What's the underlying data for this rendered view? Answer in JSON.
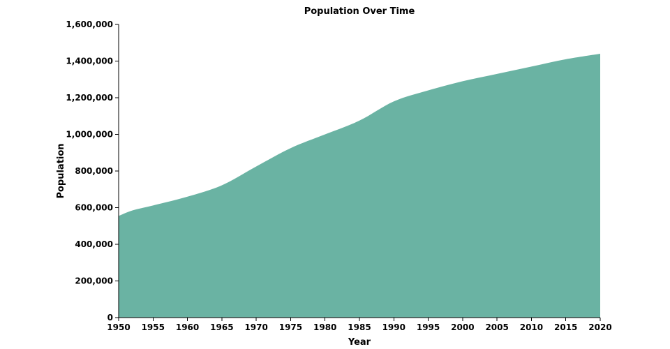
{
  "chart_data": {
    "type": "area",
    "title": "Population Over Time",
    "xlabel": "Year",
    "ylabel": "Population",
    "xlim": [
      1950,
      2020
    ],
    "ylim": [
      0,
      1600000
    ],
    "x_ticks": [
      1950,
      1955,
      1960,
      1965,
      1970,
      1975,
      1980,
      1985,
      1990,
      1995,
      2000,
      2005,
      2010,
      2015,
      2020
    ],
    "x_tick_labels": [
      "1950",
      "1955",
      "1960",
      "1965",
      "1970",
      "1975",
      "1980",
      "1985",
      "1990",
      "1995",
      "2000",
      "2005",
      "2010",
      "2015",
      "2020"
    ],
    "y_ticks": [
      0,
      200000,
      400000,
      600000,
      800000,
      1000000,
      1200000,
      1400000,
      1600000
    ],
    "y_tick_labels": [
      "0",
      "200,000",
      "400,000",
      "600,000",
      "800,000",
      "1,000,000",
      "1,200,000",
      "1,400,000",
      "1,600,000"
    ],
    "grid": false,
    "legend": "none",
    "fill_color": "#6ab3a3",
    "series": [
      {
        "x": [
          1950,
          1952,
          1955,
          1960,
          1965,
          1970,
          1975,
          1980,
          1985,
          1990,
          1995,
          2000,
          2005,
          2010,
          2015,
          2020
        ],
        "values": [
          555000,
          585000,
          612000,
          660000,
          722000,
          825000,
          925000,
          1000000,
          1075000,
          1180000,
          1240000,
          1290000,
          1330000,
          1370000,
          1410000,
          1440000
        ]
      }
    ]
  }
}
